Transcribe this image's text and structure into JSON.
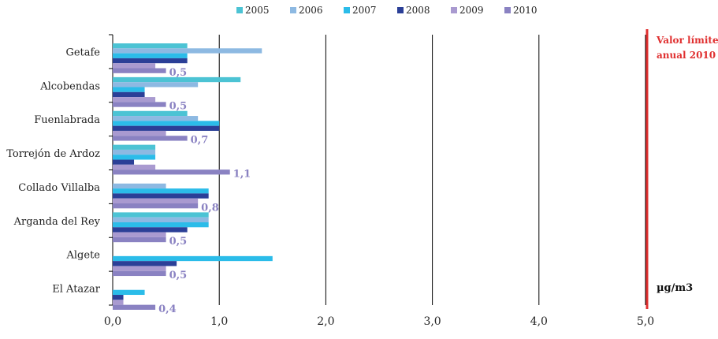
{
  "chart_data": {
    "type": "bar",
    "orientation": "horizontal",
    "categories": [
      "Getafe",
      "Alcobendas",
      "Fuenlabrada",
      "Torrejón de Ardoz",
      "Collado Villalba",
      "Arganda del Rey",
      "Algete",
      "El Atazar"
    ],
    "series": [
      {
        "name": "2005",
        "color": "#4cc3d4",
        "values": [
          0.7,
          1.2,
          0.7,
          0.4,
          0.0,
          0.9,
          0.0,
          0.0
        ]
      },
      {
        "name": "2006",
        "color": "#8db9e2",
        "values": [
          1.4,
          0.8,
          0.8,
          0.4,
          0.5,
          0.9,
          0.0,
          0.0
        ]
      },
      {
        "name": "2007",
        "color": "#2bbce9",
        "values": [
          0.7,
          0.3,
          1.0,
          0.4,
          0.9,
          0.9,
          1.5,
          0.3
        ]
      },
      {
        "name": "2008",
        "color": "#2b3f97",
        "values": [
          0.7,
          0.3,
          1.0,
          0.2,
          0.9,
          0.7,
          0.6,
          0.1
        ]
      },
      {
        "name": "2009",
        "color": "#a99ad0",
        "values": [
          0.4,
          0.4,
          0.5,
          0.4,
          0.8,
          0.5,
          0.5,
          0.1
        ]
      },
      {
        "name": "2010",
        "color": "#8a82c2",
        "values": [
          0.5,
          0.5,
          0.7,
          1.1,
          0.8,
          0.5,
          0.5,
          0.4
        ]
      }
    ],
    "data_labels": [
      "0,5",
      "0,5",
      "0,7",
      "1,1",
      "0,8",
      "0,5",
      "0,5",
      "0,4"
    ],
    "x_ticks": [
      "0,0",
      "1,0",
      "2,0",
      "3,0",
      "4,0",
      "5,0"
    ],
    "xlim": [
      0,
      5
    ],
    "grid": true,
    "legend_position": "top",
    "limit_line": {
      "value": 5.0,
      "label_line1": "Valor límite",
      "label_line2": "anual 2010",
      "color": "#e03030"
    },
    "unit_label": "µg/m3",
    "label_color": "#8a82c2"
  }
}
